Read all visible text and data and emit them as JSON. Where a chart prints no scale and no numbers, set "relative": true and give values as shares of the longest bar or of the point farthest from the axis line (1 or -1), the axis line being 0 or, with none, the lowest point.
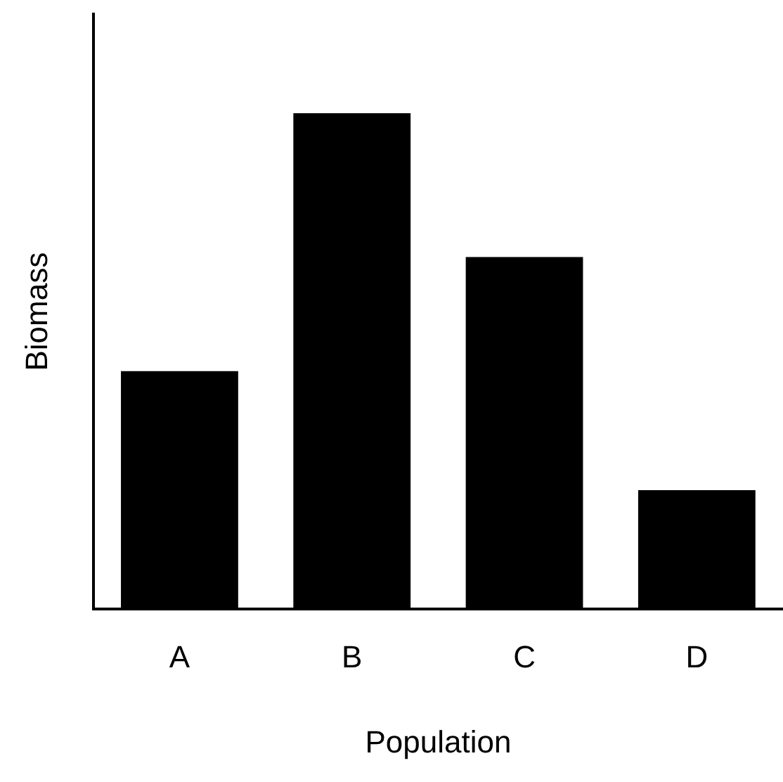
{
  "chart_data": {
    "type": "bar",
    "xlabel": "Population",
    "ylabel": "Biomass",
    "categories": [
      "A",
      "B",
      "C",
      "D"
    ],
    "values": [
      0.48,
      1,
      0.71,
      0.24
    ],
    "color": "#000000",
    "relative": true,
    "grid": false,
    "legend": false
  }
}
